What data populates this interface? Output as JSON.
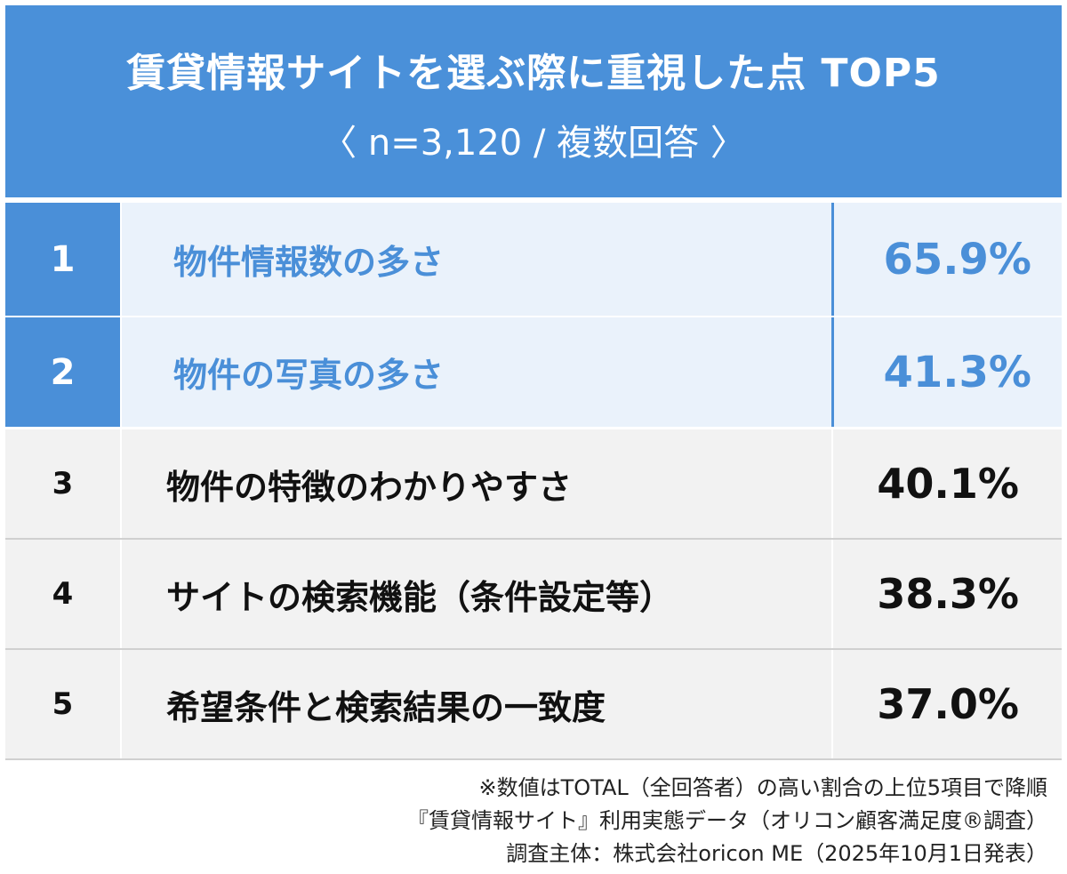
{
  "chart_data": {
    "type": "table",
    "title": "賃貸情報サイトを選ぶ際に重視した点 TOP5",
    "subtitle": "〈 n=3,120 / 複数回答 〉",
    "rows": [
      {
        "rank": "1",
        "label": "物件情報数の多さ",
        "value": "65.9%"
      },
      {
        "rank": "2",
        "label": "物件の写真の多さ",
        "value": "41.3%"
      },
      {
        "rank": "3",
        "label": "物件の特徴のわかりやすさ",
        "value": "40.1%"
      },
      {
        "rank": "4",
        "label": "サイトの検索機能（条件設定等）",
        "value": "38.3%"
      },
      {
        "rank": "5",
        "label": "希望条件と検索結果の一致度",
        "value": "37.0%"
      }
    ],
    "highlight_top": 2,
    "colors": {
      "accent": "#4a90d9",
      "highlight_bg": "#eaf2fb",
      "row_bg": "#f2f2f2"
    }
  },
  "notes": [
    "※数値はTOTAL（全回答者）の高い割合の上位5項目で降順",
    "『賃貸情報サイト』利用実態データ（オリコン顧客満足度®調査）",
    "調査主体：株式会社oricon ME（2025年10月1日発表）"
  ]
}
